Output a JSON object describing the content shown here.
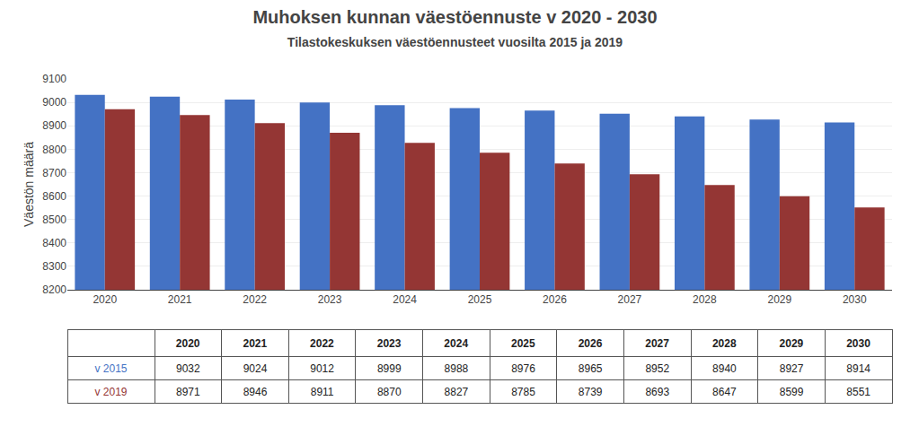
{
  "chart_data": {
    "type": "bar",
    "title": "Muhoksen kunnan väestöennuste v 2020 - 2030",
    "subtitle": "Tilastokeskuksen väestöennusteet vuosilta 2015 ja 2019",
    "ylabel": "Väestön määrä",
    "categories": [
      2020,
      2021,
      2022,
      2023,
      2024,
      2025,
      2026,
      2027,
      2028,
      2029,
      2030
    ],
    "series": [
      {
        "name": "v 2015",
        "color": "#4472C4",
        "values": [
          9032,
          9024,
          9012,
          8999,
          8988,
          8976,
          8965,
          8952,
          8940,
          8927,
          8914
        ]
      },
      {
        "name": "v 2019",
        "color": "#943634",
        "values": [
          8971,
          8946,
          8911,
          8870,
          8827,
          8785,
          8739,
          8693,
          8647,
          8599,
          8551
        ]
      }
    ],
    "ylim": [
      8200,
      9100
    ],
    "yticks": [
      8200,
      8300,
      8400,
      8500,
      8600,
      8700,
      8800,
      8900,
      9000,
      9100
    ],
    "grid": true
  }
}
